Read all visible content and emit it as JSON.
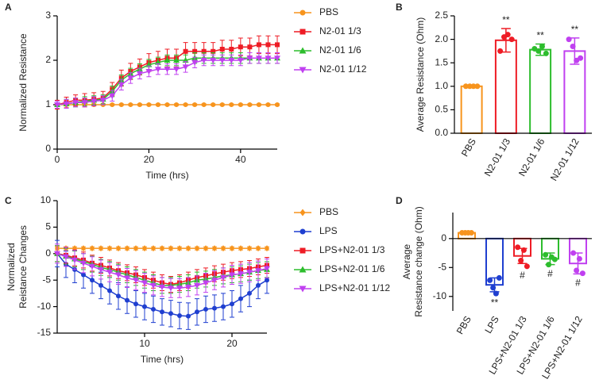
{
  "chart_data": [
    {
      "type": "line",
      "panel_label": "A",
      "xlabel": "Time (hrs)",
      "ylabel": [
        "Normalized Resistance"
      ],
      "x": [
        0,
        2,
        4,
        6,
        8,
        10,
        12,
        14,
        16,
        18,
        20,
        22,
        24,
        26,
        28,
        30,
        32,
        34,
        36,
        38,
        40,
        42,
        44,
        46,
        48
      ],
      "xlim": [
        0,
        48
      ],
      "xticks": [
        0,
        20,
        40
      ],
      "ylim": [
        0,
        3
      ],
      "yticks": [
        0,
        1,
        2,
        3
      ],
      "series": [
        {
          "name": "PBS",
          "color": "#f7941d",
          "marker": "circle",
          "values": [
            1,
            1,
            1,
            1,
            1,
            1,
            1,
            1,
            1,
            1,
            1,
            1,
            1,
            1,
            1,
            1,
            1,
            1,
            1,
            1,
            1,
            1,
            1,
            1,
            1
          ],
          "errors": [
            0.02,
            0.02,
            0.02,
            0.02,
            0.02,
            0.02,
            0.02,
            0.02,
            0.02,
            0.02,
            0.02,
            0.02,
            0.02,
            0.02,
            0.02,
            0.02,
            0.02,
            0.02,
            0.02,
            0.02,
            0.02,
            0.02,
            0.02,
            0.02,
            0.02
          ]
        },
        {
          "name": "N2-01 1/3",
          "color": "#ee1c25",
          "marker": "square",
          "values": [
            1.0,
            1.05,
            1.1,
            1.1,
            1.12,
            1.15,
            1.35,
            1.6,
            1.75,
            1.85,
            1.95,
            2.0,
            2.05,
            2.05,
            2.2,
            2.2,
            2.2,
            2.2,
            2.25,
            2.25,
            2.3,
            2.3,
            2.35,
            2.35,
            2.35
          ],
          "errors": [
            0.1,
            0.12,
            0.12,
            0.15,
            0.15,
            0.15,
            0.15,
            0.18,
            0.18,
            0.18,
            0.2,
            0.2,
            0.2,
            0.2,
            0.2,
            0.2,
            0.2,
            0.2,
            0.2,
            0.2,
            0.2,
            0.2,
            0.2,
            0.2,
            0.2
          ]
        },
        {
          "name": "N2-01 1/6",
          "color": "#2dbd2d",
          "marker": "triangle",
          "values": [
            1.0,
            1.02,
            1.05,
            1.08,
            1.1,
            1.12,
            1.3,
            1.55,
            1.7,
            1.8,
            1.9,
            1.95,
            2.0,
            2.0,
            2.0,
            2.05,
            2.05,
            2.05,
            2.05,
            2.05,
            2.05,
            2.05,
            2.05,
            2.05,
            2.05
          ],
          "errors": [
            0.08,
            0.1,
            0.1,
            0.1,
            0.1,
            0.1,
            0.12,
            0.12,
            0.12,
            0.12,
            0.12,
            0.12,
            0.12,
            0.12,
            0.12,
            0.12,
            0.12,
            0.12,
            0.12,
            0.12,
            0.12,
            0.12,
            0.12,
            0.12,
            0.12
          ]
        },
        {
          "name": "N2-01 1/12",
          "color": "#c040f0",
          "marker": "triangle-down",
          "values": [
            1.0,
            1.02,
            1.05,
            1.05,
            1.08,
            1.1,
            1.2,
            1.45,
            1.6,
            1.7,
            1.75,
            1.8,
            1.8,
            1.8,
            1.85,
            1.95,
            2.0,
            2.0,
            2.0,
            2.0,
            2.0,
            2.05,
            2.05,
            2.05,
            2.05
          ],
          "errors": [
            0.08,
            0.1,
            0.1,
            0.1,
            0.1,
            0.1,
            0.12,
            0.12,
            0.12,
            0.12,
            0.12,
            0.12,
            0.12,
            0.12,
            0.12,
            0.12,
            0.12,
            0.12,
            0.12,
            0.12,
            0.12,
            0.12,
            0.12,
            0.12,
            0.12
          ]
        }
      ]
    },
    {
      "type": "bar",
      "panel_label": "B",
      "ylabel": [
        "Average Resistance (Ohm)"
      ],
      "categories": [
        "PBS",
        "N2-01 1/3",
        "N2-01 1/6",
        "N2-01 1/12"
      ],
      "colors": [
        "#f7941d",
        "#ee1c25",
        "#2dbd2d",
        "#c040f0"
      ],
      "values": [
        1.0,
        1.98,
        1.78,
        1.75
      ],
      "errors": [
        0.02,
        0.25,
        0.12,
        0.28
      ],
      "points": [
        [
          1.0,
          1.0,
          1.0,
          1.0
        ],
        [
          1.75,
          2.05,
          2.1,
          2.0
        ],
        [
          1.8,
          1.75,
          1.85,
          1.7
        ],
        [
          2.0,
          1.85,
          1.55,
          1.6
        ]
      ],
      "annotations": [
        null,
        "**",
        "**",
        "**"
      ],
      "annotation_position": "above",
      "ylim": [
        0,
        2.5
      ],
      "yticks": [
        {
          "value": 0,
          "label": "0.0"
        },
        {
          "value": 0.5,
          "label": "0.5"
        },
        {
          "value": 1,
          "label": "1.0"
        },
        {
          "value": 1.5,
          "label": "1.5"
        },
        {
          "value": 2,
          "label": "2.0"
        },
        {
          "value": 2.5,
          "label": "2.5"
        }
      ]
    },
    {
      "type": "line",
      "panel_label": "C",
      "xlabel": "Time (hrs)",
      "ylabel": [
        "Normalized",
        "Reistance Changes"
      ],
      "x": [
        0,
        1,
        2,
        3,
        4,
        5,
        6,
        7,
        8,
        9,
        10,
        11,
        12,
        13,
        14,
        15,
        16,
        17,
        18,
        19,
        20,
        21,
        22,
        23,
        24
      ],
      "xlim": [
        0,
        24
      ],
      "xticks": [
        10,
        20
      ],
      "ylim": [
        -15,
        10
      ],
      "yticks": [
        -15,
        -10,
        -5,
        0,
        5,
        10
      ],
      "series": [
        {
          "name": "PBS",
          "color": "#f7941d",
          "marker": "diamond",
          "values": [
            1,
            1,
            1,
            1,
            1,
            1,
            1,
            1,
            1,
            1,
            1,
            1,
            1,
            1,
            1,
            1,
            1,
            1,
            1,
            1,
            1,
            1,
            1,
            1,
            1
          ],
          "errors": [
            0.3,
            0.3,
            0.3,
            0.3,
            0.3,
            0.3,
            0.3,
            0.3,
            0.3,
            0.3,
            0.3,
            0.3,
            0.3,
            0.3,
            0.3,
            0.3,
            0.3,
            0.3,
            0.3,
            0.3,
            0.3,
            0.3,
            0.3,
            0.3,
            0.3
          ]
        },
        {
          "name": "LPS",
          "color": "#1f3fd0",
          "marker": "circle",
          "values": [
            0,
            -2,
            -3,
            -4,
            -5,
            -6,
            -7,
            -8,
            -8.8,
            -9.5,
            -10,
            -10.5,
            -11,
            -11.3,
            -11.7,
            -11.8,
            -11,
            -10.5,
            -10.3,
            -10,
            -9.5,
            -8.5,
            -7.5,
            -6,
            -5
          ],
          "errors": [
            2.5,
            2.5,
            2.5,
            2.5,
            2.5,
            2.5,
            2.5,
            2.5,
            2.5,
            2.5,
            2.5,
            2.5,
            2.5,
            2.5,
            2.5,
            2.5,
            2.5,
            2.5,
            2.5,
            2.5,
            2.5,
            2.5,
            2.5,
            2.5,
            2.5
          ]
        },
        {
          "name": "LPS+N2-01 1/3",
          "color": "#ee1c25",
          "marker": "square",
          "values": [
            0,
            -0.3,
            -0.8,
            -1.2,
            -1.8,
            -2.2,
            -2.7,
            -3.2,
            -3.6,
            -4,
            -4.5,
            -5,
            -5.5,
            -5.8,
            -5.5,
            -5,
            -4.5,
            -4.2,
            -3.8,
            -3.5,
            -3.2,
            -3,
            -2.8,
            -2.5,
            -2.2
          ],
          "errors": [
            1.5,
            1.5,
            1.5,
            1.5,
            1.5,
            1.5,
            1.5,
            1.5,
            1.5,
            1.5,
            1.5,
            1.5,
            1.5,
            1.5,
            1.5,
            1.5,
            1.5,
            1.5,
            1.5,
            1.5,
            1.5,
            1.5,
            1.5,
            1.5,
            1.5
          ]
        },
        {
          "name": "LPS+N2-01 1/6",
          "color": "#2dbd2d",
          "marker": "triangle",
          "values": [
            0,
            -0.5,
            -1,
            -1.5,
            -2,
            -2.6,
            -3,
            -3.5,
            -4,
            -4.5,
            -5,
            -5.5,
            -6,
            -6,
            -5.8,
            -5.5,
            -5,
            -4.8,
            -4.5,
            -4.2,
            -4,
            -3.8,
            -3.5,
            -3.2,
            -3
          ],
          "errors": [
            1.5,
            1.5,
            1.5,
            1.5,
            1.5,
            1.5,
            1.5,
            1.5,
            1.5,
            1.5,
            1.5,
            1.5,
            1.5,
            1.5,
            1.5,
            1.5,
            1.5,
            1.5,
            1.5,
            1.5,
            1.5,
            1.5,
            1.5,
            1.5,
            1.5
          ]
        },
        {
          "name": "LPS+N2-01 1/12",
          "color": "#c040f0",
          "marker": "triangle-down",
          "values": [
            0,
            -0.6,
            -1.2,
            -1.8,
            -2.4,
            -3,
            -3.5,
            -4,
            -4.6,
            -5,
            -5.5,
            -6,
            -6.3,
            -6.5,
            -6.5,
            -6.3,
            -6,
            -5.5,
            -5,
            -4.5,
            -4,
            -3.8,
            -3.5,
            -3.2,
            -2.8
          ],
          "errors": [
            1.8,
            1.8,
            1.8,
            1.8,
            1.8,
            1.8,
            1.8,
            1.8,
            1.8,
            1.8,
            1.8,
            1.8,
            1.8,
            1.8,
            1.8,
            1.8,
            1.8,
            1.8,
            1.8,
            1.8,
            1.8,
            1.8,
            1.8,
            1.8,
            1.8
          ]
        }
      ]
    },
    {
      "type": "bar",
      "panel_label": "D",
      "ylabel": [
        "Average",
        "Resistance change (Ohm)"
      ],
      "categories": [
        "PBS",
        "LPS",
        "LPS+N2-01 1/3",
        "LPS+N2-01 1/6",
        "LPS+N2-01 1/12"
      ],
      "colors": [
        "#f7941d",
        "#1f3fd0",
        "#ee1c25",
        "#2dbd2d",
        "#c040f0"
      ],
      "values": [
        1.0,
        -8.0,
        -3.0,
        -3.5,
        -4.3
      ],
      "errors": [
        0.1,
        1.2,
        1.3,
        1.0,
        1.8
      ],
      "points": [
        [
          1.0,
          1.0,
          1.0,
          1.0
        ],
        [
          -7.2,
          -8.5,
          -9.5,
          -6.8
        ],
        [
          -1.5,
          -3.8,
          -2.0,
          -4.8
        ],
        [
          -2.8,
          -4.5,
          -3.2,
          -3.6
        ],
        [
          -2.5,
          -5.5,
          -3.5,
          -6.0
        ]
      ],
      "annotations": [
        null,
        "**",
        "#",
        "#",
        "#"
      ],
      "annotation_position": "below",
      "ylim": [
        -12.5,
        4.5
      ],
      "yticks": [
        -10,
        -5,
        0
      ]
    }
  ]
}
